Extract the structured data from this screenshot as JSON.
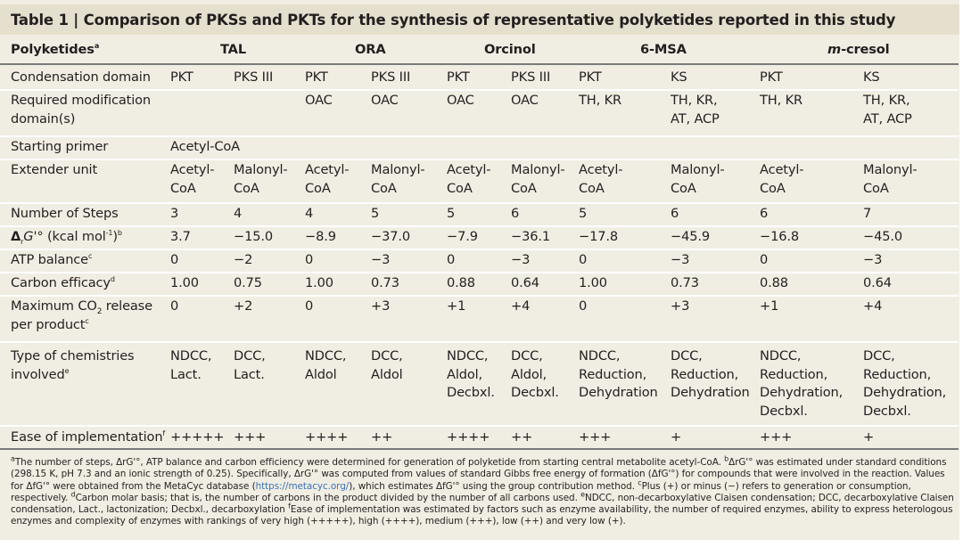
{
  "title": "Table 1 | Comparison of PKSs and PKTs for the synthesis of representative polyketides reported in this study",
  "header": {
    "label": "Polyketides",
    "label_sup": "a",
    "groups": [
      "TAL",
      "ORA",
      "Orcinol",
      "6-MSA",
      "m-cresol"
    ]
  },
  "rows": [
    {
      "label": "Condensation domain",
      "cells": [
        "PKT",
        "PKS III",
        "PKT",
        "PKS III",
        "PKT",
        "PKS III",
        "PKT",
        "KS",
        "PKT",
        "KS"
      ]
    },
    {
      "label": "Required modification domain(s)",
      "cells": [
        "",
        "",
        "OAC",
        "OAC",
        "OAC",
        "OAC",
        "TH, KR",
        "TH, KR, AT, ACP",
        "TH, KR",
        "TH, KR, AT, ACP"
      ]
    },
    {
      "label": "Starting primer",
      "cells": [
        "Acetyl-CoA"
      ]
    },
    {
      "label": "Extender unit",
      "cells": [
        "Acetyl-CoA",
        "Malonyl-CoA",
        "Acetyl-CoA",
        "Malonyl-CoA",
        "Acetyl-CoA",
        "Malonyl-CoA",
        "Acetyl-CoA",
        "Malonyl-CoA",
        "Acetyl-CoA",
        "Malonyl-CoA"
      ]
    },
    {
      "label": "Number of Steps",
      "cells": [
        "3",
        "4",
        "4",
        "5",
        "5",
        "6",
        "5",
        "6",
        "6",
        "7"
      ]
    },
    {
      "label": "ΔrG'° (kcal mol-1)",
      "label_sup": "b",
      "cells": [
        "3.7",
        "−15.0",
        "−8.9",
        "−37.0",
        "−7.9",
        "−36.1",
        "−17.8",
        "−45.9",
        "−16.8",
        "−45.0"
      ]
    },
    {
      "label": "ATP balance",
      "label_sup": "c",
      "cells": [
        "0",
        "−2",
        "0",
        "−3",
        "0",
        "−3",
        "0",
        "−3",
        "0",
        "−3"
      ]
    },
    {
      "label": "Carbon efficacy",
      "label_sup": "d",
      "cells": [
        "1.00",
        "0.75",
        "1.00",
        "0.73",
        "0.88",
        "0.64",
        "1.00",
        "0.73",
        "0.88",
        "0.64"
      ]
    },
    {
      "label": "Maximum CO2 release per product",
      "label_sup": "c",
      "cells": [
        "0",
        "+2",
        "0",
        "+3",
        "+1",
        "+4",
        "0",
        "+3",
        "+1",
        "+4"
      ]
    },
    {
      "label": "Type of chemistries involved",
      "label_sup": "e",
      "cells": [
        "NDCC, Lact.",
        "DCC, Lact.",
        "NDCC, Aldol",
        "DCC, Aldol",
        "NDCC, Aldol, Decbxl.",
        "DCC, Aldol, Decbxl.",
        "NDCC, Reduction, Dehydration",
        "DCC, Reduction, Dehydration",
        "NDCC, Reduction, Dehydration, Decbxl.",
        "DCC, Reduction, Dehydration, Decbxl."
      ]
    },
    {
      "label": "Ease of implementation",
      "label_sup": "f",
      "cells": [
        "+++++",
        "+++",
        "++++",
        "++",
        "++++",
        "++",
        "+++",
        "+",
        "+++",
        "+"
      ]
    }
  ],
  "footnotes": {
    "a": "The number of steps, ΔrG'°, ATP balance and carbon efficiency were determined for generation of polyketide from starting central metabolite acetyl-CoA.",
    "b": "ΔrG'° was estimated under standard conditions (298.15 K, pH 7.3 and an ionic strength of 0.25). Specifically, ΔrG'° was computed from values of standard Gibbs free energy of formation (ΔfG'°) for compounds that were involved in the reaction. Values for ΔfG'° were obtained from the MetaCyc database (",
    "b_link": "https://metacyc.org/",
    "b_end": "), which estimates ΔfG'° using the group contribution method.",
    "c": "Plus (+) or minus (−) refers to generation or consumption, respectively.",
    "d": "Carbon molar basis; that is, the number of carbons in the product divided by the number of all carbons used.",
    "e": "NDCC, non-decarboxylative Claisen condensation; DCC, decarboxylative Claisen condensation, Lact., lactonization; Decbxl., decarboxylation",
    "f": "Ease of implementation was estimated by factors such as enzyme availability, the number of required enzymes, ability to express heterologous enzymes and complexity of enzymes with rankings of very high (+++++), high (++++), medium (+++), low (++) and very low (+)."
  }
}
